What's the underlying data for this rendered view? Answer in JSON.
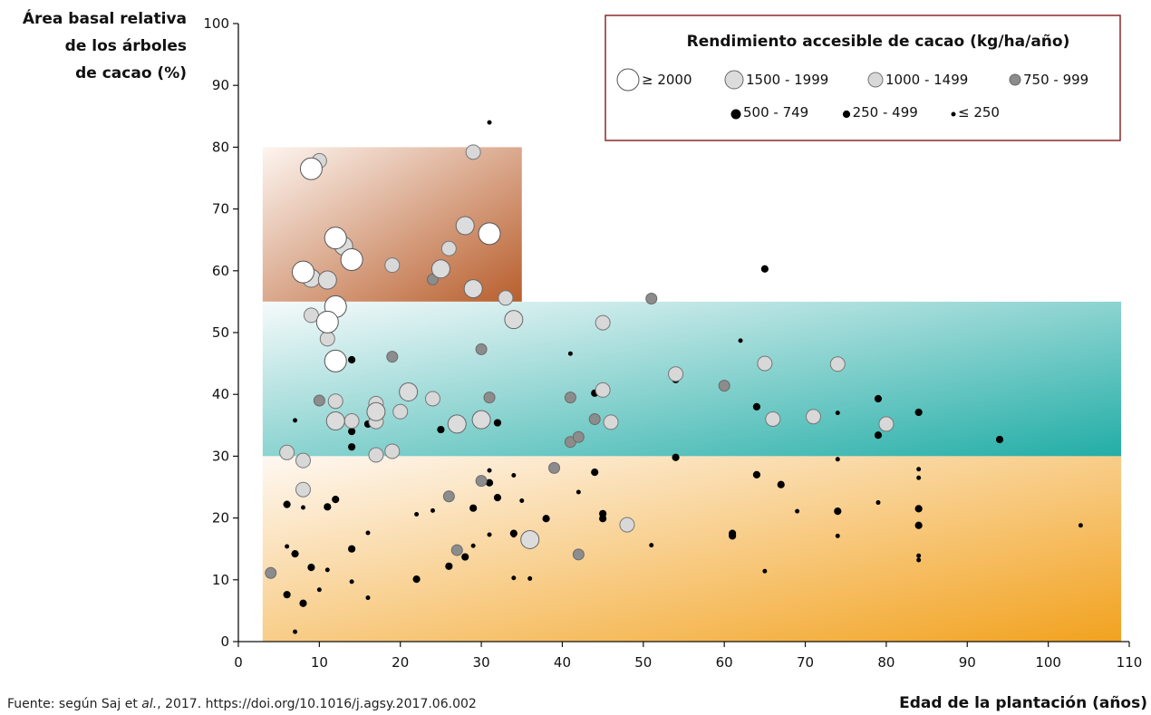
{
  "chart_data": {
    "type": "scatter",
    "title": "",
    "xlabel": "Edad de la plantación (años)",
    "ylabel_lines": [
      "Área basal relativa",
      "de los árboles",
      "de cacao (%)"
    ],
    "xlim": [
      0,
      110
    ],
    "ylim": [
      0,
      100
    ],
    "x_ticks": [
      0,
      10,
      20,
      30,
      40,
      50,
      60,
      70,
      80,
      90,
      100,
      110
    ],
    "y_ticks": [
      0,
      10,
      20,
      30,
      40,
      50,
      60,
      70,
      80,
      90,
      100
    ],
    "grid": false,
    "legend_placement": "top-right",
    "legend": {
      "title": "Rendimiento accesible de cacao (kg/ha/año)",
      "categories": [
        {
          "key": "c1",
          "label": "≥ 2000",
          "fill": "#ffffff"
        },
        {
          "key": "c2",
          "label": "1500 - 1999",
          "fill": "#dcdcdc"
        },
        {
          "key": "c3",
          "label": "1000 - 1499",
          "fill": "#d8d8d8"
        },
        {
          "key": "c4",
          "label": "750 - 999",
          "fill": "#8c8c8c"
        },
        {
          "key": "c5",
          "label": "500 - 749",
          "fill": "#000000"
        },
        {
          "key": "c6",
          "label": "250 - 499",
          "fill": "#000000"
        },
        {
          "key": "c7",
          "label": "≤ 250",
          "fill": "#000000"
        }
      ]
    },
    "regions": [
      {
        "x0": 3,
        "x1": 35,
        "y0": 55,
        "y1": 80,
        "color_from": "#fdf5f0",
        "color_to": "#b85e2c"
      },
      {
        "x0": 3,
        "x1": 109,
        "y0": 30,
        "y1": 55,
        "color_from": "#f6fafb",
        "color_to": "#22ada6"
      },
      {
        "x0": 3,
        "x1": 109,
        "y0": 0,
        "y1": 30,
        "color_from": "#fef8f2",
        "color_to": "#f2a21f"
      }
    ],
    "points": [
      {
        "x": 9,
        "y": 76.5,
        "c": "c1"
      },
      {
        "x": 10,
        "y": 77.8,
        "c": "c3"
      },
      {
        "x": 29,
        "y": 79.2,
        "c": "c3"
      },
      {
        "x": 31,
        "y": 84,
        "c": "c7"
      },
      {
        "x": 12,
        "y": 65.3,
        "c": "c1"
      },
      {
        "x": 13,
        "y": 64,
        "c": "c2"
      },
      {
        "x": 14,
        "y": 61.8,
        "c": "c1"
      },
      {
        "x": 8,
        "y": 59.8,
        "c": "c1"
      },
      {
        "x": 9,
        "y": 58.8,
        "c": "c2"
      },
      {
        "x": 11,
        "y": 58.5,
        "c": "c2"
      },
      {
        "x": 19,
        "y": 60.9,
        "c": "c3"
      },
      {
        "x": 26,
        "y": 63.6,
        "c": "c3"
      },
      {
        "x": 28,
        "y": 67.3,
        "c": "c2"
      },
      {
        "x": 31,
        "y": 66,
        "c": "c1"
      },
      {
        "x": 24,
        "y": 58.6,
        "c": "c4"
      },
      {
        "x": 25,
        "y": 60.3,
        "c": "c2"
      },
      {
        "x": 29,
        "y": 57.1,
        "c": "c2"
      },
      {
        "x": 33,
        "y": 55.6,
        "c": "c3"
      },
      {
        "x": 9,
        "y": 52.8,
        "c": "c3"
      },
      {
        "x": 12,
        "y": 54.2,
        "c": "c1"
      },
      {
        "x": 11,
        "y": 51.7,
        "c": "c1"
      },
      {
        "x": 11,
        "y": 49,
        "c": "c3"
      },
      {
        "x": 34,
        "y": 52.1,
        "c": "c2"
      },
      {
        "x": 12,
        "y": 45.4,
        "c": "c1"
      },
      {
        "x": 14,
        "y": 45.6,
        "c": "c6"
      },
      {
        "x": 19,
        "y": 46.1,
        "c": "c4"
      },
      {
        "x": 30,
        "y": 47.3,
        "c": "c4"
      },
      {
        "x": 41,
        "y": 46.6,
        "c": "c7"
      },
      {
        "x": 45,
        "y": 51.6,
        "c": "c3"
      },
      {
        "x": 51,
        "y": 55.5,
        "c": "c4"
      },
      {
        "x": 65,
        "y": 60.3,
        "c": "c6"
      },
      {
        "x": 62,
        "y": 48.7,
        "c": "c7"
      },
      {
        "x": 54,
        "y": 43.3,
        "c": "c3"
      },
      {
        "x": 54,
        "y": 42.4,
        "c": "c6"
      },
      {
        "x": 65,
        "y": 45,
        "c": "c3"
      },
      {
        "x": 74,
        "y": 44.9,
        "c": "c3"
      },
      {
        "x": 10,
        "y": 39,
        "c": "c4"
      },
      {
        "x": 12,
        "y": 38.9,
        "c": "c3"
      },
      {
        "x": 17,
        "y": 38.5,
        "c": "c3"
      },
      {
        "x": 17,
        "y": 37.2,
        "c": "c2"
      },
      {
        "x": 20,
        "y": 37.2,
        "c": "c3"
      },
      {
        "x": 21,
        "y": 40.4,
        "c": "c2"
      },
      {
        "x": 24,
        "y": 39.3,
        "c": "c3"
      },
      {
        "x": 31,
        "y": 39.5,
        "c": "c4"
      },
      {
        "x": 41,
        "y": 39.5,
        "c": "c4"
      },
      {
        "x": 44,
        "y": 40.2,
        "c": "c6"
      },
      {
        "x": 45,
        "y": 40.7,
        "c": "c3"
      },
      {
        "x": 60,
        "y": 41.4,
        "c": "c4"
      },
      {
        "x": 64,
        "y": 38,
        "c": "c6"
      },
      {
        "x": 79,
        "y": 39.3,
        "c": "c6"
      },
      {
        "x": 7,
        "y": 35.8,
        "c": "c7"
      },
      {
        "x": 12,
        "y": 35.7,
        "c": "c2"
      },
      {
        "x": 14,
        "y": 35.7,
        "c": "c3"
      },
      {
        "x": 16,
        "y": 35.2,
        "c": "c6"
      },
      {
        "x": 17,
        "y": 35.6,
        "c": "c3"
      },
      {
        "x": 14,
        "y": 34,
        "c": "c6"
      },
      {
        "x": 25,
        "y": 34.3,
        "c": "c6"
      },
      {
        "x": 27,
        "y": 35.2,
        "c": "c2"
      },
      {
        "x": 30,
        "y": 35.9,
        "c": "c2"
      },
      {
        "x": 32,
        "y": 35.4,
        "c": "c6"
      },
      {
        "x": 44,
        "y": 36,
        "c": "c4"
      },
      {
        "x": 46,
        "y": 35.5,
        "c": "c3"
      },
      {
        "x": 66,
        "y": 36,
        "c": "c3"
      },
      {
        "x": 71,
        "y": 36.4,
        "c": "c3"
      },
      {
        "x": 74,
        "y": 37,
        "c": "c7"
      },
      {
        "x": 80,
        "y": 35.2,
        "c": "c3"
      },
      {
        "x": 84,
        "y": 37.1,
        "c": "c6"
      },
      {
        "x": 79,
        "y": 33.4,
        "c": "c6"
      },
      {
        "x": 94,
        "y": 32.7,
        "c": "c6"
      },
      {
        "x": 41,
        "y": 32.3,
        "c": "c4"
      },
      {
        "x": 42,
        "y": 33.1,
        "c": "c4"
      },
      {
        "x": 6,
        "y": 30.6,
        "c": "c3"
      },
      {
        "x": 8,
        "y": 29.3,
        "c": "c3"
      },
      {
        "x": 14,
        "y": 31.5,
        "c": "c6"
      },
      {
        "x": 17,
        "y": 30.2,
        "c": "c3"
      },
      {
        "x": 19,
        "y": 30.8,
        "c": "c3"
      },
      {
        "x": 54,
        "y": 29.8,
        "c": "c6"
      },
      {
        "x": 74,
        "y": 29.5,
        "c": "c7"
      },
      {
        "x": 8,
        "y": 24.6,
        "c": "c3"
      },
      {
        "x": 6,
        "y": 22.2,
        "c": "c6"
      },
      {
        "x": 8,
        "y": 21.7,
        "c": "c7"
      },
      {
        "x": 11,
        "y": 21.8,
        "c": "c6"
      },
      {
        "x": 12,
        "y": 23,
        "c": "c6"
      },
      {
        "x": 22,
        "y": 20.6,
        "c": "c7"
      },
      {
        "x": 24,
        "y": 21.2,
        "c": "c7"
      },
      {
        "x": 26,
        "y": 23.5,
        "c": "c4"
      },
      {
        "x": 29,
        "y": 21.6,
        "c": "c6"
      },
      {
        "x": 30,
        "y": 26,
        "c": "c4"
      },
      {
        "x": 31,
        "y": 25.7,
        "c": "c6"
      },
      {
        "x": 31,
        "y": 27.7,
        "c": "c7"
      },
      {
        "x": 32,
        "y": 23.3,
        "c": "c6"
      },
      {
        "x": 34,
        "y": 26.9,
        "c": "c7"
      },
      {
        "x": 35,
        "y": 22.8,
        "c": "c7"
      },
      {
        "x": 38,
        "y": 19.9,
        "c": "c6"
      },
      {
        "x": 39,
        "y": 28.1,
        "c": "c4"
      },
      {
        "x": 42,
        "y": 24.2,
        "c": "c7"
      },
      {
        "x": 44,
        "y": 27.4,
        "c": "c6"
      },
      {
        "x": 45,
        "y": 20.7,
        "c": "c6"
      },
      {
        "x": 45,
        "y": 19.9,
        "c": "c6"
      },
      {
        "x": 48,
        "y": 18.9,
        "c": "c3"
      },
      {
        "x": 64,
        "y": 27,
        "c": "c6"
      },
      {
        "x": 67,
        "y": 25.4,
        "c": "c6"
      },
      {
        "x": 69,
        "y": 21.1,
        "c": "c7"
      },
      {
        "x": 74,
        "y": 21.1,
        "c": "c6"
      },
      {
        "x": 79,
        "y": 22.5,
        "c": "c7"
      },
      {
        "x": 84,
        "y": 27.9,
        "c": "c7"
      },
      {
        "x": 84,
        "y": 26.5,
        "c": "c7"
      },
      {
        "x": 84,
        "y": 21.5,
        "c": "c6"
      },
      {
        "x": 84,
        "y": 18.8,
        "c": "c6"
      },
      {
        "x": 104,
        "y": 18.8,
        "c": "c7"
      },
      {
        "x": 6,
        "y": 15.4,
        "c": "c7"
      },
      {
        "x": 7,
        "y": 14.2,
        "c": "c6"
      },
      {
        "x": 9,
        "y": 12,
        "c": "c6"
      },
      {
        "x": 11,
        "y": 11.6,
        "c": "c7"
      },
      {
        "x": 14,
        "y": 15,
        "c": "c6"
      },
      {
        "x": 16,
        "y": 17.6,
        "c": "c7"
      },
      {
        "x": 26,
        "y": 12.2,
        "c": "c6"
      },
      {
        "x": 27,
        "y": 14.8,
        "c": "c4"
      },
      {
        "x": 28,
        "y": 13.7,
        "c": "c6"
      },
      {
        "x": 29,
        "y": 15.5,
        "c": "c7"
      },
      {
        "x": 31,
        "y": 17.3,
        "c": "c7"
      },
      {
        "x": 34,
        "y": 17.2,
        "c": "c7"
      },
      {
        "x": 34,
        "y": 17.5,
        "c": "c6"
      },
      {
        "x": 36,
        "y": 16.5,
        "c": "c2"
      },
      {
        "x": 42,
        "y": 14.1,
        "c": "c4"
      },
      {
        "x": 51,
        "y": 15.6,
        "c": "c7"
      },
      {
        "x": 61,
        "y": 17.5,
        "c": "c6"
      },
      {
        "x": 61,
        "y": 17.1,
        "c": "c6"
      },
      {
        "x": 74,
        "y": 17.1,
        "c": "c7"
      },
      {
        "x": 84,
        "y": 13.9,
        "c": "c7"
      },
      {
        "x": 84,
        "y": 13.2,
        "c": "c7"
      },
      {
        "x": 65,
        "y": 11.4,
        "c": "c7"
      },
      {
        "x": 4,
        "y": 11.1,
        "c": "c4"
      },
      {
        "x": 6,
        "y": 7.6,
        "c": "c6"
      },
      {
        "x": 8,
        "y": 6.2,
        "c": "c6"
      },
      {
        "x": 10,
        "y": 8.4,
        "c": "c7"
      },
      {
        "x": 14,
        "y": 9.7,
        "c": "c7"
      },
      {
        "x": 16,
        "y": 7.1,
        "c": "c7"
      },
      {
        "x": 22,
        "y": 10.1,
        "c": "c6"
      },
      {
        "x": 34,
        "y": 10.3,
        "c": "c7"
      },
      {
        "x": 36,
        "y": 10.2,
        "c": "c7"
      },
      {
        "x": 7,
        "y": 1.6,
        "c": "c7"
      }
    ]
  },
  "source_note": {
    "prefix": "Fuente: según Saj et ",
    "italic": "al.",
    "suffix": ", 2017. https://doi.org/10.1016/j.agsy.2017.06.002"
  }
}
